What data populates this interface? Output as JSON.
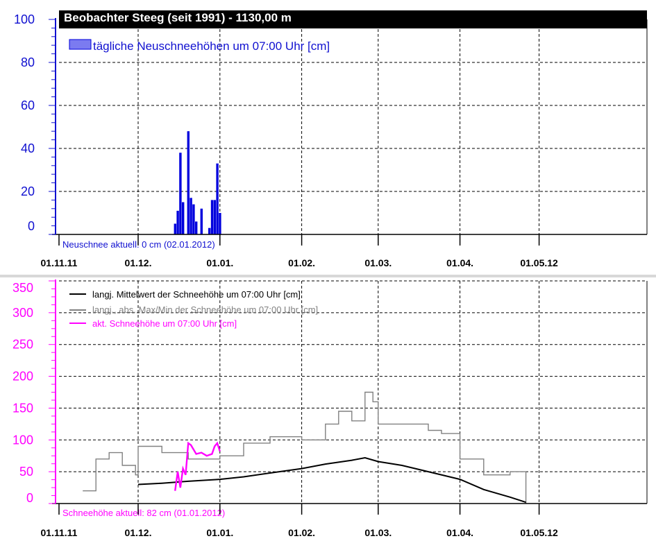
{
  "top_panel": {
    "title": "Beobachter Steeg (seit 1991) - 1130,00 m",
    "legend_label": "tägliche Neuschneehöhen um 07:00 Uhr [cm]",
    "status": "Neuschnee aktuell: 0 cm (02.01.2012)",
    "y_ticks": [
      "100",
      "80",
      "60",
      "40",
      "20",
      "0"
    ],
    "x_ticks": [
      "01.11.11",
      "01.12.",
      "01.01.",
      "01.02.",
      "01.03.",
      "01.04.",
      "01.05.12"
    ]
  },
  "bottom_panel": {
    "legend": [
      "langj. Mittelwert der Schneehöhe um 07:00 Uhr [cm]",
      "langj., abs. Max/Min der Schneehöhe um 07:00 Uhr [cm]",
      "akt. Schneehöhe um 07:00 Uhr [cm]"
    ],
    "status": "Schneehöhe aktuell: 82 cm (01.01.2012)",
    "y_ticks": [
      "350",
      "300",
      "250",
      "200",
      "150",
      "100",
      "50",
      "0"
    ],
    "x_ticks": [
      "01.11.11",
      "01.12.",
      "01.01.",
      "01.02.",
      "01.03.",
      "01.04.",
      "01.05.12"
    ]
  },
  "colors": {
    "new_snow": "#0000dd",
    "new_snow_fill": "#7b7bf0",
    "axis_top": "#1010d0",
    "axis_bottom": "#ff00ff",
    "mean": "#000000",
    "maxmin": "#808080",
    "current": "#ff00ff",
    "grid": "#000000",
    "title_bg": "#000000",
    "title_fg": "#ffffff"
  },
  "chart_data": [
    {
      "type": "bar",
      "title": "Beobachter Steeg (seit 1991) - 1130,00 m",
      "x_axis": "date (1 Nov 2011 to ~20 May 2012)",
      "ylim": [
        0,
        100
      ],
      "grid": true,
      "legend_position": "top-left",
      "series": [
        {
          "name": "tägliche Neuschneehöhen um 07:00 Uhr [cm]",
          "x": [
            "15.12.2011",
            "16.12.2011",
            "17.12.2011",
            "18.12.2011",
            "20.12.2011",
            "21.12.2011",
            "22.12.2011",
            "23.12.2011",
            "25.12.2011",
            "28.12.2011",
            "29.12.2011",
            "30.12.2011",
            "31.12.2011",
            "01.01.2012"
          ],
          "values": [
            5,
            11,
            38,
            15,
            48,
            17,
            14,
            6,
            12,
            3,
            16,
            16,
            33,
            10
          ]
        }
      ]
    },
    {
      "type": "line",
      "x_axis": "date (1 Nov 2011 to ~20 May 2012)",
      "ylim": [
        0,
        350
      ],
      "grid": true,
      "legend_position": "top-left",
      "series": [
        {
          "name": "langj. Mittelwert der Schneehöhe um 07:00 Uhr [cm]",
          "x": [
            "01.12.2011",
            "10.12.2011",
            "20.12.2011",
            "01.01.2012",
            "10.01.2012",
            "20.01.2012",
            "01.02.2012",
            "10.02.2012",
            "20.02.2012",
            "25.02.2012",
            "01.03.2012",
            "10.03.2012",
            "20.03.2012",
            "01.04.2012",
            "10.04.2012",
            "20.04.2012",
            "26.04.2012"
          ],
          "values": [
            30,
            32,
            35,
            38,
            42,
            48,
            55,
            62,
            68,
            72,
            66,
            60,
            50,
            38,
            22,
            10,
            2
          ]
        },
        {
          "name": "langj., abs. Max/Min der Schneehöhe um 07:00 Uhr [cm]",
          "x": [
            "10.11.2011",
            "15.11.2011",
            "20.11.2011",
            "25.11.2011",
            "30.11.2011",
            "01.12.2011",
            "10.12.2011",
            "20.12.2011",
            "01.01.2012",
            "10.01.2012",
            "20.01.2012",
            "01.02.2012",
            "10.02.2012",
            "15.02.2012",
            "20.02.2012",
            "25.02.2012",
            "28.02.2012",
            "01.03.2012",
            "10.03.2012",
            "20.03.2012",
            "25.03.2012",
            "01.04.2012",
            "10.04.2012",
            "20.04.2012",
            "26.04.2012"
          ],
          "values": [
            20,
            70,
            80,
            60,
            45,
            90,
            80,
            70,
            75,
            95,
            105,
            100,
            125,
            145,
            130,
            175,
            160,
            125,
            125,
            115,
            110,
            70,
            45,
            50,
            0
          ]
        },
        {
          "name": "akt. Schneehöhe um 07:00 Uhr [cm]",
          "x": [
            "15.12.2011",
            "16.12.2011",
            "17.12.2011",
            "18.12.2011",
            "19.12.2011",
            "20.12.2011",
            "21.12.2011",
            "23.12.2011",
            "25.12.2011",
            "27.12.2011",
            "29.12.2011",
            "30.12.2011",
            "31.12.2011",
            "01.01.2012"
          ],
          "values": [
            20,
            50,
            25,
            55,
            45,
            95,
            92,
            78,
            80,
            75,
            78,
            90,
            95,
            82
          ]
        }
      ]
    }
  ]
}
